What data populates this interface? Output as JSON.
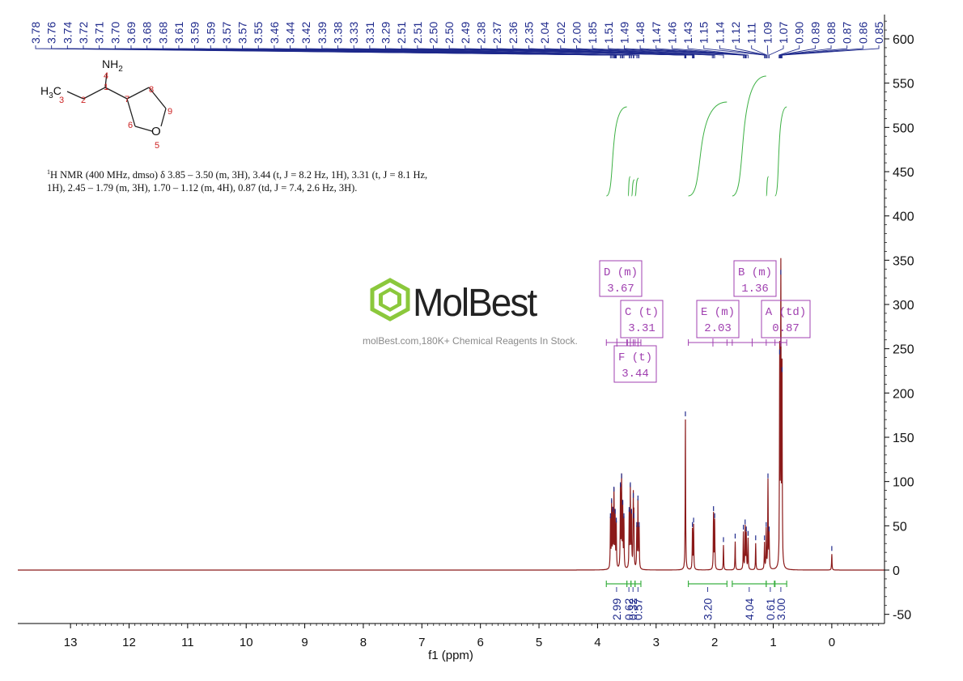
{
  "chart_data": {
    "type": "line",
    "xlabel": "f1 (ppm)",
    "ylabel": "",
    "xlim": [
      13.9,
      -0.9
    ],
    "ylim": [
      -60,
      620
    ],
    "x_ticks": [
      "13",
      "12",
      "11",
      "10",
      "9",
      "8",
      "7",
      "6",
      "5",
      "4",
      "3",
      "2",
      "1",
      "0"
    ],
    "y_ticks": [
      "-50",
      "0",
      "50",
      "100",
      "150",
      "200",
      "250",
      "300",
      "350",
      "400",
      "450",
      "500",
      "550",
      "600"
    ],
    "peak_labels": [
      "3.78",
      "3.76",
      "3.74",
      "3.72",
      "3.71",
      "3.70",
      "3.69",
      "3.68",
      "3.68",
      "3.61",
      "3.59",
      "3.59",
      "3.57",
      "3.57",
      "3.55",
      "3.46",
      "3.44",
      "3.42",
      "3.39",
      "3.38",
      "3.33",
      "3.31",
      "3.29",
      "2.51",
      "2.51",
      "2.50",
      "2.50",
      "2.49",
      "2.38",
      "2.37",
      "2.36",
      "2.35",
      "2.04",
      "2.02",
      "2.00",
      "1.85",
      "1.51",
      "1.49",
      "1.48",
      "1.47",
      "1.46",
      "1.43",
      "1.15",
      "1.14",
      "1.12",
      "1.11",
      "1.09",
      "1.07",
      "0.90",
      "0.89",
      "0.88",
      "0.87",
      "0.86",
      "0.85"
    ],
    "peaks": [
      {
        "ppm": 3.78,
        "height": 55
      },
      {
        "ppm": 3.76,
        "height": 72
      },
      {
        "ppm": 3.74,
        "height": 62
      },
      {
        "ppm": 3.72,
        "height": 85
      },
      {
        "ppm": 3.7,
        "height": 60
      },
      {
        "ppm": 3.68,
        "height": 50
      },
      {
        "ppm": 3.61,
        "height": 90
      },
      {
        "ppm": 3.59,
        "height": 100
      },
      {
        "ppm": 3.57,
        "height": 70
      },
      {
        "ppm": 3.55,
        "height": 55
      },
      {
        "ppm": 3.46,
        "height": 62
      },
      {
        "ppm": 3.44,
        "height": 90
      },
      {
        "ppm": 3.42,
        "height": 60
      },
      {
        "ppm": 3.39,
        "height": 78
      },
      {
        "ppm": 3.38,
        "height": 55
      },
      {
        "ppm": 3.33,
        "height": 45
      },
      {
        "ppm": 3.31,
        "height": 75
      },
      {
        "ppm": 3.29,
        "height": 45
      },
      {
        "ppm": 2.5,
        "height": 170
      },
      {
        "ppm": 2.38,
        "height": 45
      },
      {
        "ppm": 2.36,
        "height": 50
      },
      {
        "ppm": 2.02,
        "height": 63
      },
      {
        "ppm": 2.0,
        "height": 55
      },
      {
        "ppm": 1.85,
        "height": 28
      },
      {
        "ppm": 1.65,
        "height": 32
      },
      {
        "ppm": 1.51,
        "height": 42
      },
      {
        "ppm": 1.48,
        "height": 48
      },
      {
        "ppm": 1.46,
        "height": 40
      },
      {
        "ppm": 1.43,
        "height": 35
      },
      {
        "ppm": 1.3,
        "height": 30
      },
      {
        "ppm": 1.15,
        "height": 30
      },
      {
        "ppm": 1.12,
        "height": 45
      },
      {
        "ppm": 1.09,
        "height": 100
      },
      {
        "ppm": 1.07,
        "height": 40
      },
      {
        "ppm": 0.89,
        "height": 240
      },
      {
        "ppm": 0.87,
        "height": 330
      },
      {
        "ppm": 0.85,
        "height": 220
      },
      {
        "ppm": 0.0,
        "height": 18
      }
    ],
    "multiplets": [
      {
        "letter": "D",
        "mult": "(m)",
        "shift": "3.67",
        "range": [
          3.85,
          3.5
        ]
      },
      {
        "letter": "C",
        "mult": "(t)",
        "shift": "3.31",
        "range": [
          3.36,
          3.26
        ]
      },
      {
        "letter": "F",
        "mult": "(t)",
        "shift": "3.44",
        "range": [
          3.49,
          3.39
        ]
      },
      {
        "letter": "E",
        "mult": "(m)",
        "shift": "2.03",
        "range": [
          2.45,
          1.79
        ]
      },
      {
        "letter": "B",
        "mult": "(m)",
        "shift": "1.36",
        "range": [
          1.7,
          1.12
        ]
      },
      {
        "letter": "A",
        "mult": "(td)",
        "shift": "0.87",
        "range": [
          0.97,
          0.77
        ]
      }
    ],
    "integrals": [
      {
        "value": "2.99",
        "range": [
          3.85,
          3.5
        ]
      },
      {
        "value": "0.62",
        "range": [
          3.5,
          3.43
        ]
      },
      {
        "value": "0.32",
        "range": [
          3.43,
          3.36
        ]
      },
      {
        "value": "0.57",
        "range": [
          3.36,
          3.26
        ]
      },
      {
        "value": "3.20",
        "range": [
          2.45,
          1.79
        ]
      },
      {
        "value": "4.04",
        "range": [
          1.7,
          1.12
        ]
      },
      {
        "value": "0.61",
        "range": [
          1.12,
          0.98
        ]
      },
      {
        "value": "3.00",
        "range": [
          0.97,
          0.77
        ]
      }
    ],
    "colors": {
      "spectrum": "#8b1a1a",
      "peak_picks": "#1f2a8c",
      "integrals": "#3cb043",
      "multiplet_boxes": "#a040b0",
      "axis": "#000000"
    }
  },
  "structure": {
    "nh2": "NH",
    "nh2_sub": "2",
    "h3c": "H",
    "h3c_sub": "3",
    "h3c_c": "C",
    "oxygen": "O",
    "atom_numbers": [
      "1",
      "2",
      "3",
      "4",
      "5",
      "6",
      "7",
      "8",
      "9"
    ]
  },
  "description": {
    "sup": "1",
    "line1": "H NMR (400 MHz, dmso) δ 3.85 – 3.50 (m, 3H), 3.44 (t, J = 8.2 Hz, 1H), 3.31 (t, J = 8.1 Hz,",
    "line2": "1H), 2.45 – 1.79 (m, 3H), 1.70 – 1.12 (m, 4H), 0.87 (td, J = 7.4, 2.6 Hz, 3H)."
  },
  "watermark": {
    "brand": "MolBest",
    "tagline": "molBest.com,180K+ Chemical Reagents In Stock."
  }
}
